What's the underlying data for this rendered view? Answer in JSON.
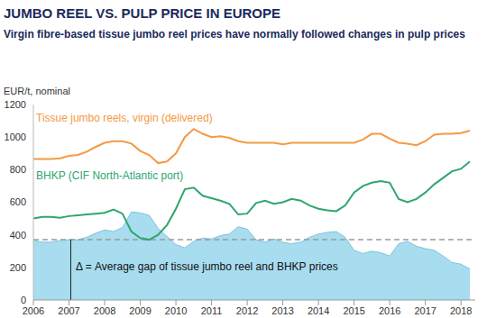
{
  "chart_data": {
    "type": "line",
    "title": "JUMBO REEL VS. PULP PRICE IN EUROPE",
    "subtitle": "Virgin fibre-based tissue jumbo reel prices have normally followed changes in pulp prices",
    "y_label": "EUR/t, nominal",
    "x": [
      2006,
      2006.25,
      2006.5,
      2006.75,
      2007,
      2007.25,
      2007.5,
      2007.75,
      2008,
      2008.25,
      2008.5,
      2008.75,
      2009,
      2009.25,
      2009.5,
      2009.75,
      2010,
      2010.25,
      2010.5,
      2010.75,
      2011,
      2011.25,
      2011.5,
      2011.75,
      2012,
      2012.25,
      2012.5,
      2012.75,
      2013,
      2013.25,
      2013.5,
      2013.75,
      2014,
      2014.25,
      2014.5,
      2014.75,
      2015,
      2015.25,
      2015.5,
      2015.75,
      2016,
      2016.25,
      2016.5,
      2016.75,
      2017,
      2017.25,
      2017.5,
      2017.75,
      2018,
      2018.25
    ],
    "xlim": [
      2006,
      2018.4
    ],
    "xticks": [
      2006,
      2007,
      2008,
      2009,
      2010,
      2011,
      2012,
      2013,
      2014,
      2015,
      2016,
      2017,
      2018
    ],
    "ylim": [
      0,
      1200
    ],
    "yticks": [
      0,
      200,
      400,
      600,
      800,
      1000,
      1200
    ],
    "grid": false,
    "series": [
      {
        "name": "Tissue jumbo reels, virgin (delivered)",
        "type": "line",
        "color": "#F39A44",
        "values": [
          865,
          865,
          865,
          870,
          885,
          890,
          910,
          940,
          965,
          975,
          975,
          960,
          915,
          890,
          840,
          850,
          900,
          1000,
          1050,
          1020,
          1000,
          1005,
          995,
          975,
          965,
          965,
          965,
          965,
          955,
          965,
          965,
          965,
          965,
          965,
          965,
          965,
          965,
          985,
          1020,
          1020,
          990,
          965,
          960,
          950,
          975,
          1015,
          1020,
          1020,
          1025,
          1040
        ]
      },
      {
        "name": "BHKP (CIF North-Atlantic port)",
        "type": "line",
        "color": "#2EA66E",
        "values": [
          500,
          510,
          510,
          505,
          515,
          520,
          525,
          530,
          535,
          555,
          530,
          420,
          380,
          370,
          400,
          460,
          560,
          680,
          690,
          640,
          625,
          610,
          590,
          525,
          530,
          595,
          610,
          590,
          600,
          620,
          610,
          580,
          560,
          550,
          545,
          580,
          660,
          700,
          720,
          730,
          720,
          620,
          600,
          620,
          660,
          710,
          750,
          790,
          805,
          850
        ]
      },
      {
        "type": "area",
        "color": "#A8DCEF",
        "values": [
          365,
          355,
          355,
          365,
          370,
          370,
          385,
          410,
          430,
          420,
          445,
          540,
          535,
          520,
          440,
          390,
          340,
          320,
          360,
          380,
          375,
          395,
          405,
          450,
          435,
          370,
          355,
          375,
          355,
          345,
          355,
          385,
          405,
          415,
          420,
          385,
          305,
          285,
          300,
          290,
          270,
          345,
          360,
          330,
          315,
          305,
          270,
          230,
          220,
          190
        ]
      }
    ],
    "average_gap": 370,
    "annotation": "Δ = Average gap of tissue jumbo reel and BHKP prices"
  }
}
